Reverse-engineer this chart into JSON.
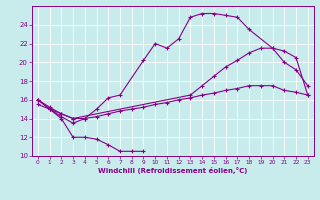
{
  "xlabel": "Windchill (Refroidissement éolien,°C)",
  "background_color": "#c8ecec",
  "line_color": "#880088",
  "grid_color": "#aadddd",
  "xlim": [
    -0.5,
    23.5
  ],
  "ylim": [
    10,
    26
  ],
  "xticks": [
    0,
    1,
    2,
    3,
    4,
    5,
    6,
    7,
    8,
    9,
    10,
    11,
    12,
    13,
    14,
    15,
    16,
    17,
    18,
    19,
    20,
    21,
    22,
    23
  ],
  "yticks": [
    10,
    12,
    14,
    16,
    18,
    20,
    22,
    24
  ],
  "curve1_x": [
    0,
    1,
    2,
    3,
    4,
    5,
    6,
    7,
    8,
    9
  ],
  "curve1_y": [
    16.0,
    15.0,
    14.0,
    12.0,
    12.0,
    11.8,
    11.2,
    10.5,
    10.5,
    10.5
  ],
  "curve2_x": [
    0,
    1,
    2,
    3,
    4,
    5,
    6,
    7,
    9,
    10,
    11,
    12,
    13,
    14,
    15,
    16,
    17,
    18,
    20,
    21,
    22,
    23
  ],
  "curve2_y": [
    16.0,
    15.0,
    14.2,
    13.5,
    14.0,
    15.0,
    16.2,
    16.5,
    20.2,
    22.0,
    21.5,
    22.5,
    24.8,
    25.2,
    25.2,
    25.0,
    24.8,
    23.5,
    21.5,
    20.0,
    19.2,
    17.5
  ],
  "curve3_x": [
    0,
    1,
    2,
    3,
    13,
    14,
    15,
    16,
    17,
    18,
    19,
    20,
    21,
    22,
    23
  ],
  "curve3_y": [
    16.0,
    15.2,
    14.5,
    14.0,
    16.5,
    17.5,
    18.5,
    19.5,
    20.2,
    21.0,
    21.5,
    21.5,
    21.2,
    20.5,
    16.5
  ],
  "curve4_x": [
    0,
    1,
    2,
    3,
    4,
    5,
    6,
    7,
    8,
    9,
    10,
    11,
    12,
    13,
    14,
    15,
    16,
    17,
    18,
    19,
    20,
    21,
    22,
    23
  ],
  "curve4_y": [
    15.5,
    15.0,
    14.5,
    14.0,
    14.0,
    14.2,
    14.5,
    14.8,
    15.0,
    15.2,
    15.5,
    15.7,
    16.0,
    16.2,
    16.5,
    16.7,
    17.0,
    17.2,
    17.5,
    17.5,
    17.5,
    17.0,
    16.8,
    16.5
  ]
}
